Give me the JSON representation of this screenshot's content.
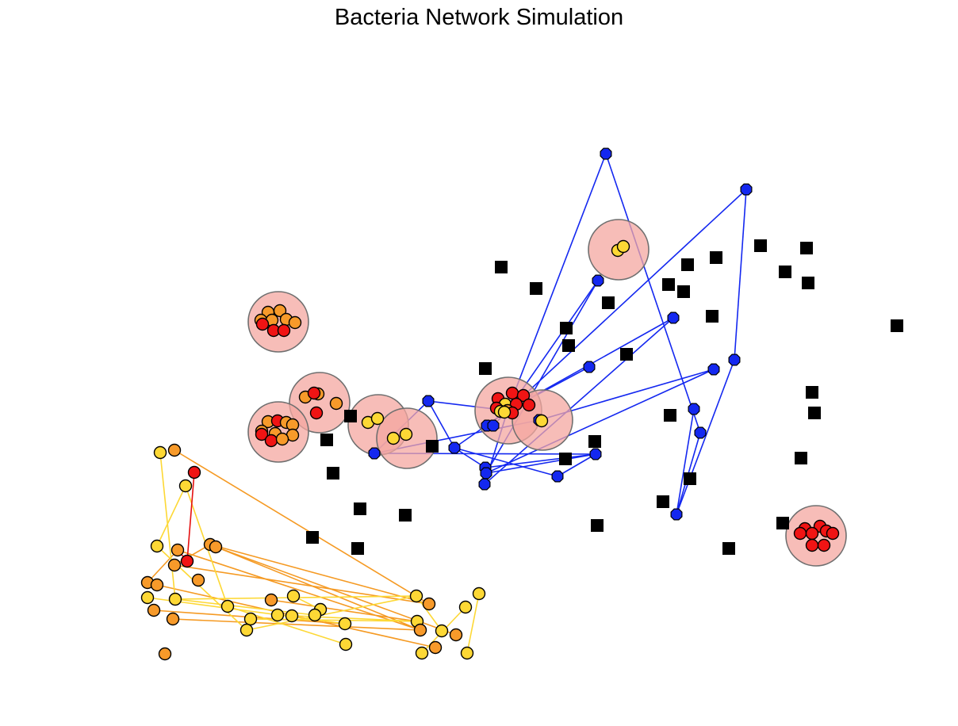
{
  "title": "Bacteria Network Simulation",
  "colors": {
    "background": "#ffffff",
    "blue_node": "#1428f0",
    "blue_edge": "#1428f0",
    "orange_node": "#f79a2a",
    "orange_edge": "#f59a23",
    "yellow_node": "#fdd835",
    "yellow_edge": "#fdd835",
    "red_node": "#f01414",
    "red_edge": "#e41010",
    "cluster_fill": "#f4a7a0",
    "cluster_stroke": "#6f6f6f",
    "obstacle": "#000000",
    "node_outline": "#000000"
  },
  "legend": {
    "blue_octagon": "blue network node",
    "black_square": "obstacle",
    "pink_circle": "bacteria cluster",
    "orange_circle": "orange bacterium",
    "yellow_circle": "yellow bacterium",
    "red_circle": "red bacterium"
  }
}
